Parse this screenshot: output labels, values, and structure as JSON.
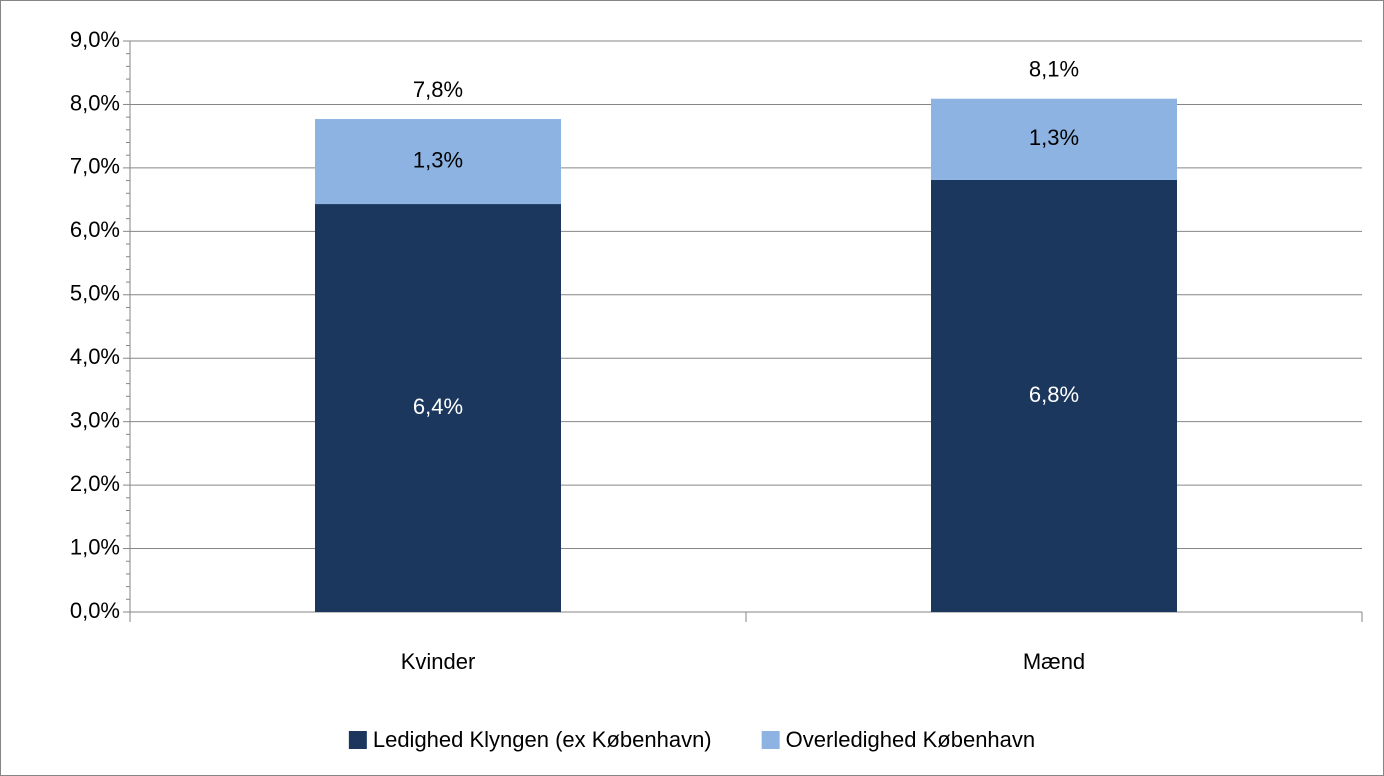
{
  "chart_data": {
    "type": "stacked_bar",
    "categories": [
      "Kvinder",
      "Mænd"
    ],
    "series": [
      {
        "name": "Ledighed Klyngen (ex København)",
        "color": "#1b375e",
        "values": [
          6.43,
          6.81
        ],
        "value_labels": [
          "6,4%",
          "6,8%"
        ],
        "label_color": "#ffffff"
      },
      {
        "name": "Overledighed København",
        "color": "#8db3e2",
        "values": [
          1.34,
          1.28
        ],
        "value_labels": [
          "1,3%",
          "1,3%"
        ],
        "label_color": "#000000"
      }
    ],
    "totals": [
      7.77,
      8.09
    ],
    "total_labels": [
      "7,8%",
      "8,1%"
    ],
    "ylim": [
      0,
      9
    ],
    "yticks": [
      {
        "value": 0,
        "label": "0,0%"
      },
      {
        "value": 1,
        "label": "1,0%"
      },
      {
        "value": 2,
        "label": "2,0%"
      },
      {
        "value": 3,
        "label": "3,0%"
      },
      {
        "value": 4,
        "label": "4,0%"
      },
      {
        "value": 5,
        "label": "5,0%"
      },
      {
        "value": 6,
        "label": "6,0%"
      },
      {
        "value": 7,
        "label": "7,0%"
      },
      {
        "value": 8,
        "label": "8,0%"
      },
      {
        "value": 9,
        "label": "9,0%"
      }
    ],
    "grid": true,
    "legend": "bottom"
  }
}
